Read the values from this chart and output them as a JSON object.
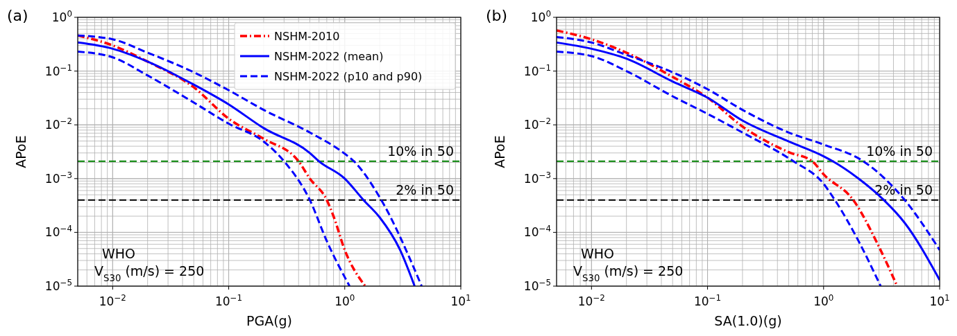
{
  "chart_data": [
    {
      "type": "line",
      "title": "(a)",
      "xlabel": "PGA(g)",
      "ylabel": "APoE",
      "log": "xy",
      "grid": true,
      "legend": "top right",
      "xlim": [
        0.005,
        10
      ],
      "ylim": [
        1e-05,
        1
      ],
      "xticks": [
        {
          "value": 0.01,
          "label": "10$^{−2}$"
        },
        {
          "value": 0.1,
          "label": "10$^{−1}$"
        },
        {
          "value": 1,
          "label": "10$^{0}$"
        },
        {
          "value": 10,
          "label": "10$^{1}$"
        }
      ],
      "yticks": [
        {
          "value": 1e-05,
          "label": "10$^{−5}$"
        },
        {
          "value": 0.0001,
          "label": "10$^{−4}$"
        },
        {
          "value": 0.001,
          "label": "10$^{−3}$"
        },
        {
          "value": 0.01,
          "label": "10$^{−2}$"
        },
        {
          "value": 0.1,
          "label": "10$^{−1}$"
        },
        {
          "value": 1,
          "label": "10$^{0}$"
        }
      ],
      "ref_lines": [
        {
          "axis": "y",
          "value": 0.0021,
          "label": "10% in 50",
          "color": "#008000",
          "line_style": "dashed"
        },
        {
          "axis": "y",
          "value": 0.0004,
          "label": "2% in 50",
          "color": "#000000",
          "line_style": "dashed"
        }
      ],
      "annotations": [
        "WHO",
        "V$_{S30}$ (m/s) = 250"
      ],
      "series": [
        {
          "name": "NSHM-2010",
          "color": "#ff0000",
          "line_style": "dashdot",
          "x": [
            0.005,
            0.01,
            0.02,
            0.05,
            0.1,
            0.2,
            0.4,
            0.5,
            0.7,
            0.8,
            1,
            1.5
          ],
          "values": [
            0.46,
            0.3,
            0.15,
            0.05,
            0.013,
            0.0055,
            0.0021,
            0.001,
            0.0004,
            0.0002,
            4.7e-05,
            1e-05
          ]
        },
        {
          "name": "NSHM-2022 (mean)",
          "color": "#0000ff",
          "line_style": "solid",
          "x": [
            0.005,
            0.01,
            0.02,
            0.05,
            0.1,
            0.2,
            0.5,
            0.6,
            1,
            1.45,
            2,
            3,
            4
          ],
          "values": [
            0.34,
            0.26,
            0.15,
            0.056,
            0.024,
            0.0087,
            0.003,
            0.0021,
            0.001,
            0.0004,
            0.00019,
            4.7e-05,
            1e-05
          ]
        },
        {
          "name": "NSHM-2022 (p10 and p90)",
          "color": "#0000ff",
          "line_style": "dashed",
          "x": [
            0.005,
            0.01,
            0.02,
            0.05,
            0.1,
            0.2,
            0.5,
            1,
            1.2,
            2,
            4.6
          ],
          "values": [
            0.46,
            0.39,
            0.22,
            0.095,
            0.044,
            0.019,
            0.0072,
            0.0029,
            0.0021,
            0.00045,
            1e-05
          ]
        },
        {
          "color": "#0000ff",
          "line_style": "dashed",
          "x": [
            0.005,
            0.01,
            0.02,
            0.05,
            0.1,
            0.2,
            0.3,
            0.5,
            0.7,
            1.1
          ],
          "values": [
            0.23,
            0.18,
            0.083,
            0.026,
            0.0105,
            0.0049,
            0.0021,
            0.0004,
            6.9e-05,
            1e-05
          ]
        }
      ]
    },
    {
      "type": "line",
      "title": "(b)",
      "xlabel": "SA(1.0)(g)",
      "ylabel": "APoE",
      "log": "xy",
      "grid": true,
      "legend": false,
      "xlim": [
        0.005,
        10
      ],
      "ylim": [
        1e-05,
        1
      ],
      "xticks": [
        {
          "value": 0.01,
          "label": "10$^{−2}$"
        },
        {
          "value": 0.1,
          "label": "10$^{−1}$"
        },
        {
          "value": 1,
          "label": "10$^{0}$"
        },
        {
          "value": 10,
          "label": "10$^{1}$"
        }
      ],
      "yticks": [
        {
          "value": 1e-05,
          "label": "10$^{−5}$"
        },
        {
          "value": 0.0001,
          "label": "10$^{−4}$"
        },
        {
          "value": 0.001,
          "label": "10$^{−3}$"
        },
        {
          "value": 0.01,
          "label": "10$^{−2}$"
        },
        {
          "value": 0.1,
          "label": "10$^{−1}$"
        },
        {
          "value": 1,
          "label": "10$^{0}$"
        }
      ],
      "ref_lines": [
        {
          "axis": "y",
          "value": 0.0021,
          "label": "10% in 50",
          "color": "#008000",
          "line_style": "dashed"
        },
        {
          "axis": "y",
          "value": 0.0004,
          "label": "2% in 50",
          "color": "#000000",
          "line_style": "dashed"
        }
      ],
      "annotations": [
        "WHO",
        "V$_{S30}$ (m/s) = 250"
      ],
      "series": [
        {
          "color": "#ff0000",
          "line_style": "dashdot",
          "x": [
            0.005,
            0.01,
            0.02,
            0.05,
            0.1,
            0.2,
            0.5,
            0.8,
            1,
            1.8,
            3,
            4.3
          ],
          "values": [
            0.57,
            0.39,
            0.22,
            0.078,
            0.032,
            0.0093,
            0.0031,
            0.0021,
            0.0012,
            0.0004,
            5.4e-05,
            1e-05
          ]
        },
        {
          "color": "#0000ff",
          "line_style": "solid",
          "x": [
            0.005,
            0.01,
            0.02,
            0.05,
            0.1,
            0.2,
            0.5,
            1,
            1.2,
            2,
            3.3,
            5,
            10
          ],
          "values": [
            0.34,
            0.26,
            0.17,
            0.064,
            0.032,
            0.012,
            0.0049,
            0.0026,
            0.0021,
            0.001,
            0.0004,
            0.00015,
            1.3e-05
          ]
        },
        {
          "color": "#0000ff",
          "line_style": "dashed",
          "x": [
            0.005,
            0.01,
            0.02,
            0.05,
            0.1,
            0.2,
            0.5,
            1,
            2.2,
            5,
            10
          ],
          "values": [
            0.43,
            0.34,
            0.2,
            0.095,
            0.046,
            0.019,
            0.0072,
            0.0043,
            0.0021,
            0.0004,
            4.7e-05
          ]
        },
        {
          "color": "#0000ff",
          "line_style": "dashed",
          "x": [
            0.005,
            0.01,
            0.02,
            0.05,
            0.1,
            0.2,
            0.5,
            0.55,
            1,
            1.25,
            2,
            3.1
          ],
          "values": [
            0.23,
            0.19,
            0.1,
            0.034,
            0.016,
            0.0072,
            0.0024,
            0.0021,
            0.0008,
            0.0004,
            6.9e-05,
            1e-05
          ]
        }
      ]
    }
  ]
}
